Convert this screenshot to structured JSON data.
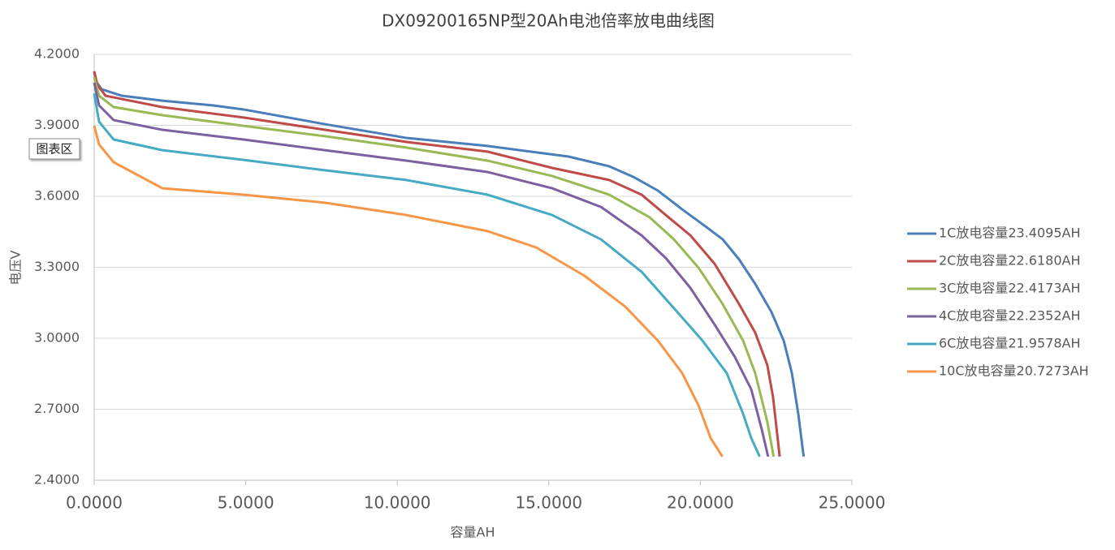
{
  "chart_data": {
    "type": "line",
    "title": "DX09200165NP型20Ah电池倍率放电曲线图",
    "xlabel": "容量AH",
    "ylabel": "电压V",
    "annotation": "图表区",
    "xlim": [
      0,
      25
    ],
    "ylim": [
      2.4,
      4.2
    ],
    "xticks": [
      {
        "value": 0,
        "label": "0.0000"
      },
      {
        "value": 5,
        "label": "5.0000"
      },
      {
        "value": 10,
        "label": "10.0000"
      },
      {
        "value": 15,
        "label": "15.0000"
      },
      {
        "value": 20,
        "label": "20.0000"
      },
      {
        "value": 25,
        "label": "25.0000"
      }
    ],
    "yticks": [
      {
        "value": 2.4,
        "label": "2.4000"
      },
      {
        "value": 2.7,
        "label": "2.7000"
      },
      {
        "value": 3.0,
        "label": "3.0000"
      },
      {
        "value": 3.3,
        "label": "3.3000"
      },
      {
        "value": 3.6,
        "label": "3.6000"
      },
      {
        "value": 3.9,
        "label": "3.9000"
      },
      {
        "value": 4.2,
        "label": "4.2000"
      }
    ],
    "grid": true,
    "legend": "right",
    "series": [
      {
        "name": "1C放电容量23.4095AH",
        "color": "#4a7ebb",
        "x": [
          0,
          0.054,
          0.24,
          0.91,
          2.25,
          3.94,
          4.93,
          7.61,
          10.29,
          12.97,
          15.65,
          16.99,
          17.79,
          18.6,
          19.4,
          20.2,
          20.74,
          21.28,
          21.81,
          22.35,
          22.75,
          23.02,
          23.23,
          23.4095
        ],
        "values": [
          4.128,
          4.087,
          4.053,
          4.025,
          4.004,
          3.984,
          3.967,
          3.905,
          3.847,
          3.813,
          3.768,
          3.727,
          3.682,
          3.624,
          3.545,
          3.47,
          3.418,
          3.333,
          3.23,
          3.11,
          2.99,
          2.853,
          2.681,
          2.5
        ]
      },
      {
        "name": "2C放电容量22.6180AH",
        "color": "#be4b48",
        "x": [
          0,
          0.107,
          0.375,
          2.25,
          4.93,
          7.61,
          10.29,
          12.97,
          15.11,
          16.99,
          18.06,
          18.86,
          19.67,
          20.47,
          21.28,
          21.81,
          22.21,
          22.4,
          22.618
        ],
        "values": [
          4.128,
          4.07,
          4.025,
          3.977,
          3.933,
          3.881,
          3.83,
          3.789,
          3.72,
          3.669,
          3.607,
          3.521,
          3.435,
          3.315,
          3.144,
          3.024,
          2.887,
          2.75,
          2.5
        ]
      },
      {
        "name": "3C放电容量22.4173AH",
        "color": "#98b954",
        "x": [
          0,
          0.161,
          0.643,
          2.25,
          4.93,
          7.61,
          10.29,
          12.97,
          15.11,
          16.99,
          18.33,
          19.13,
          19.94,
          20.74,
          21.41,
          21.81,
          22.21,
          22.4173
        ],
        "values": [
          4.104,
          4.025,
          3.977,
          3.943,
          3.898,
          3.854,
          3.806,
          3.751,
          3.686,
          3.607,
          3.511,
          3.418,
          3.298,
          3.144,
          2.99,
          2.853,
          2.647,
          2.5
        ]
      },
      {
        "name": "4C放电容量22.2352AH",
        "color": "#7d60a0",
        "x": [
          0,
          0.161,
          0.643,
          2.25,
          4.93,
          7.61,
          10.29,
          12.97,
          15.11,
          16.72,
          18.06,
          18.86,
          19.67,
          20.47,
          21.14,
          21.68,
          22.03,
          22.2352
        ],
        "values": [
          4.08,
          3.984,
          3.922,
          3.881,
          3.84,
          3.795,
          3.751,
          3.703,
          3.634,
          3.555,
          3.435,
          3.339,
          3.213,
          3.058,
          2.921,
          2.784,
          2.613,
          2.5
        ]
      },
      {
        "name": "6C放电容量21.9578AH",
        "color": "#46aac5",
        "x": [
          0,
          0.161,
          0.643,
          2.25,
          4.93,
          7.61,
          10.29,
          12.97,
          15.11,
          16.72,
          18.06,
          19.13,
          20.07,
          20.87,
          21.41,
          21.68,
          21.9578
        ],
        "values": [
          4.035,
          3.915,
          3.84,
          3.795,
          3.754,
          3.71,
          3.669,
          3.607,
          3.521,
          3.418,
          3.281,
          3.127,
          2.99,
          2.853,
          2.681,
          2.578,
          2.5
        ]
      },
      {
        "name": "10C放电容量20.7273AH",
        "color": "#f79646",
        "x": [
          0,
          0.161,
          0.643,
          2.25,
          4.93,
          7.61,
          10.29,
          12.97,
          14.58,
          16.18,
          17.52,
          18.6,
          19.4,
          19.94,
          20.34,
          20.7273
        ],
        "values": [
          3.898,
          3.819,
          3.744,
          3.634,
          3.607,
          3.573,
          3.521,
          3.453,
          3.384,
          3.264,
          3.134,
          2.99,
          2.853,
          2.716,
          2.578,
          2.5
        ]
      }
    ]
  }
}
